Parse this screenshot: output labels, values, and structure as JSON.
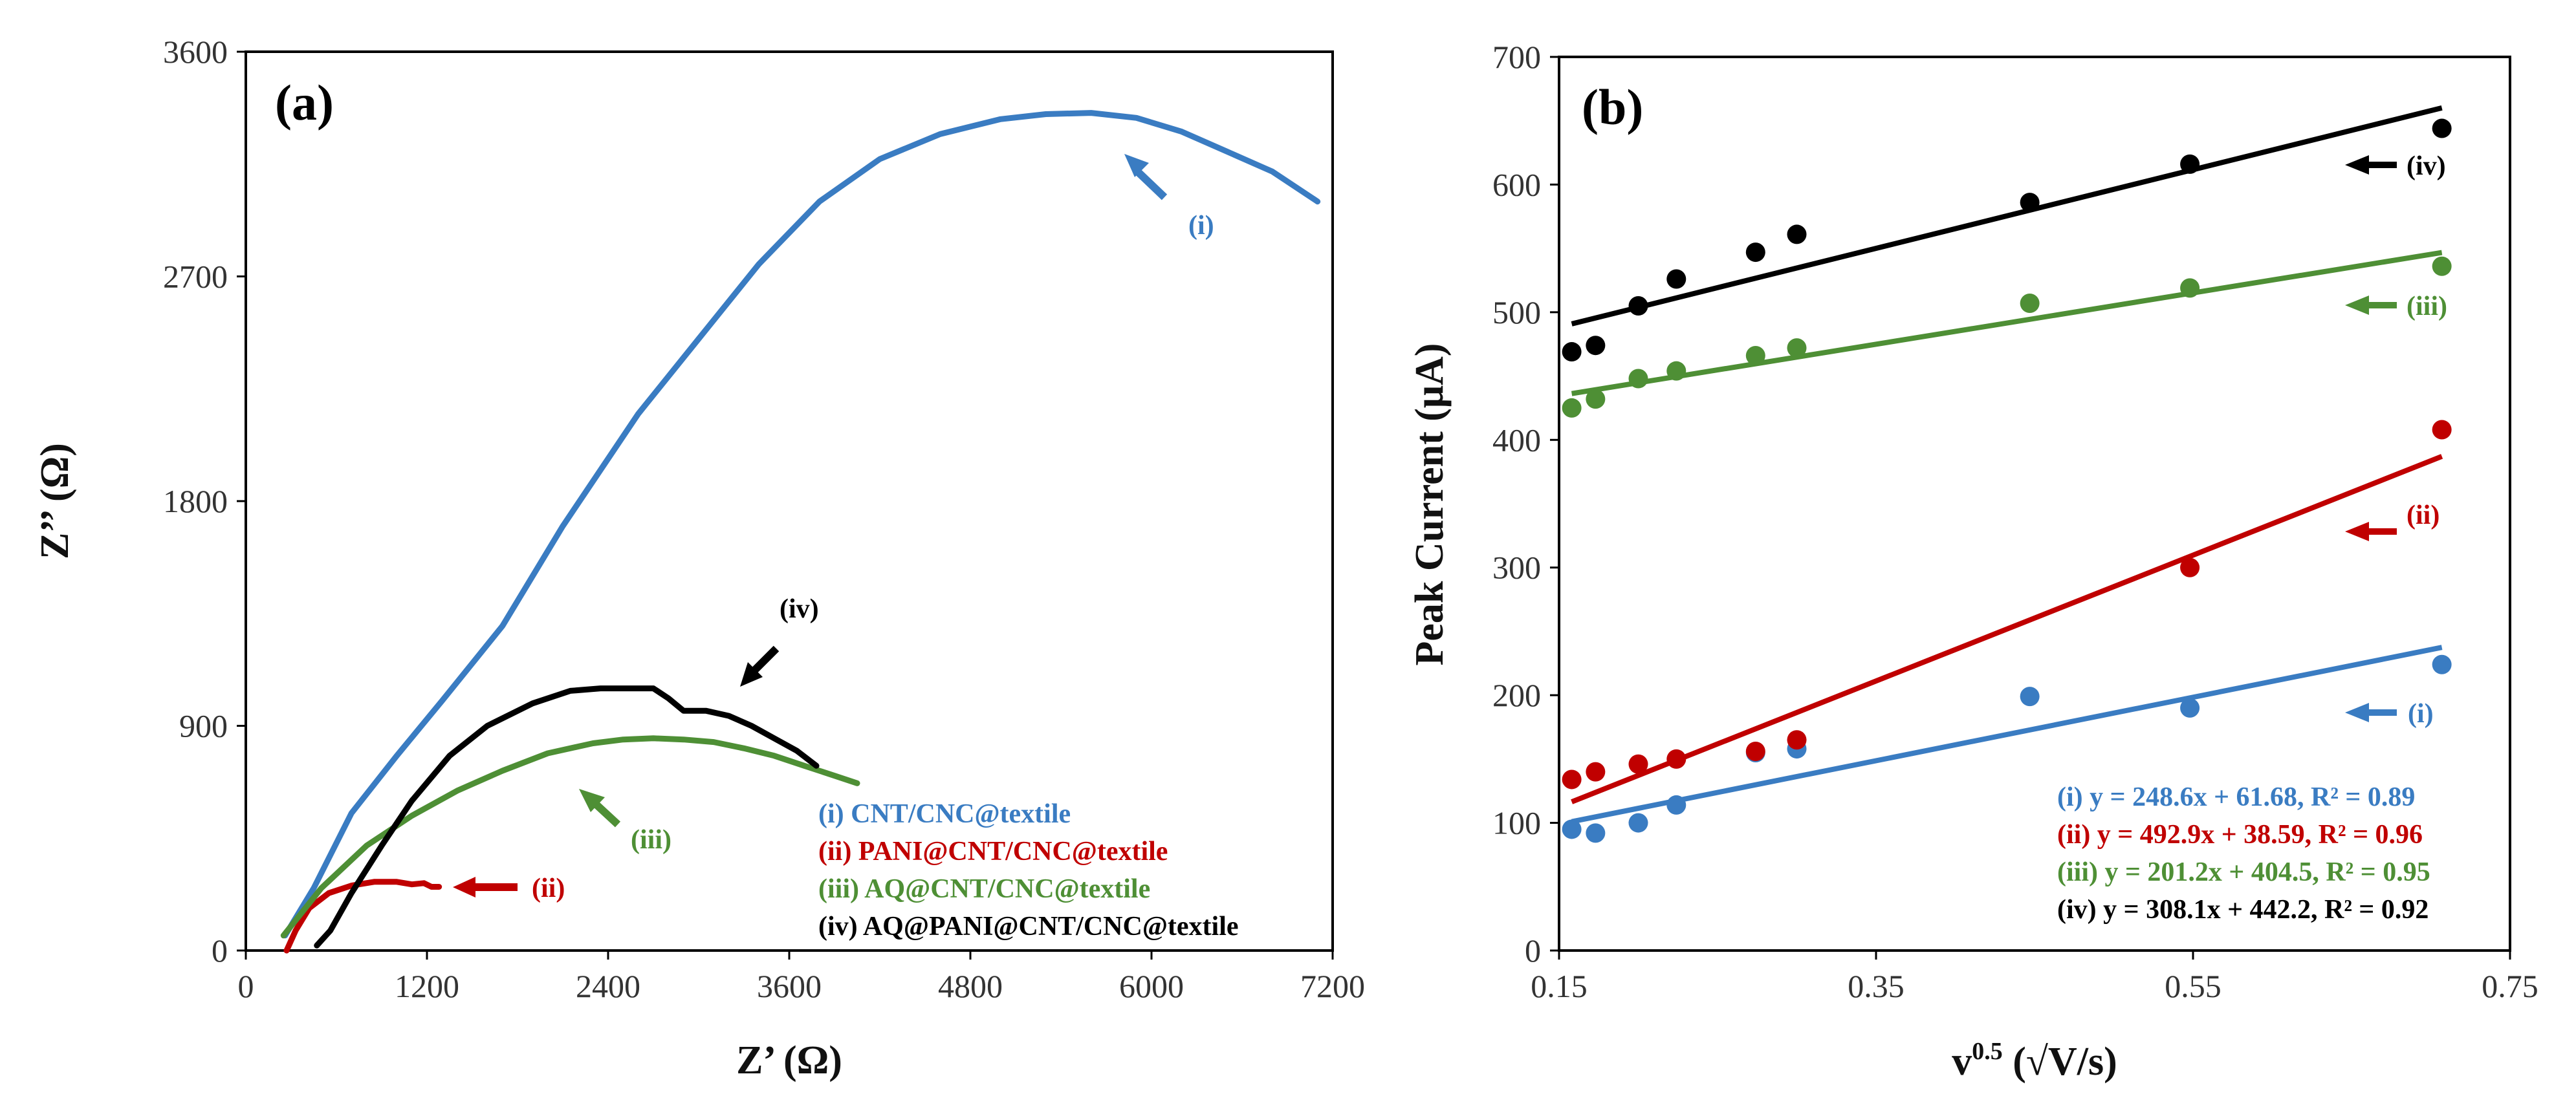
{
  "chart_data": [
    {
      "type": "line",
      "panel_label": "(a)",
      "xlabel": "Z’ (Ω)",
      "ylabel": "Z’’ (Ω)",
      "xlim": [
        0,
        7200
      ],
      "ylim": [
        0,
        3600
      ],
      "xticks": [
        0,
        1200,
        2400,
        3600,
        4800,
        6000,
        7200
      ],
      "yticks": [
        0,
        900,
        1800,
        2700,
        3600
      ],
      "grid": false,
      "legend_position": "bottom-right",
      "series": [
        {
          "name": "(i) CNT/CNC@textile",
          "color": "#3a7cc2",
          "x": [
            260,
            450,
            700,
            1000,
            1300,
            1700,
            2100,
            2600,
            3000,
            3400,
            3800,
            4200,
            4600,
            5000,
            5300,
            5600,
            5900,
            6200,
            6500,
            6800,
            7100
          ],
          "y": [
            60,
            250,
            550,
            780,
            1000,
            1300,
            1700,
            2150,
            2450,
            2750,
            3000,
            3170,
            3270,
            3330,
            3350,
            3355,
            3335,
            3280,
            3200,
            3120,
            3000
          ]
        },
        {
          "name": "(ii) PANI@CNT/CNC@textile",
          "color": "#c00000",
          "x": [
            270,
            330,
            420,
            550,
            700,
            850,
            1000,
            1100,
            1180,
            1230,
            1280
          ],
          "y": [
            0,
            80,
            170,
            230,
            260,
            275,
            275,
            265,
            270,
            255,
            255
          ]
        },
        {
          "name": "(iii) AQ@CNT/CNC@textile",
          "color": "#4e8f35",
          "x": [
            250,
            500,
            800,
            1100,
            1400,
            1700,
            2000,
            2300,
            2500,
            2700,
            2900,
            3100,
            3300,
            3500,
            3700,
            3900,
            4050
          ],
          "y": [
            60,
            250,
            420,
            540,
            640,
            720,
            790,
            830,
            845,
            850,
            845,
            835,
            810,
            780,
            740,
            700,
            670
          ]
        },
        {
          "name": "(iv) AQ@PANI@CNT/CNC@textile",
          "color": "#000000",
          "x": [
            470,
            560,
            700,
            900,
            1100,
            1350,
            1600,
            1900,
            2150,
            2350,
            2550,
            2700,
            2800,
            2900,
            3050,
            3200,
            3350,
            3500,
            3650,
            3780
          ],
          "y": [
            20,
            80,
            230,
            420,
            600,
            780,
            900,
            990,
            1040,
            1050,
            1050,
            1050,
            1010,
            960,
            960,
            940,
            900,
            850,
            800,
            740
          ]
        }
      ],
      "annotations": [
        {
          "text": "(i)",
          "color": "#3a7cc2",
          "arrow": "up-left"
        },
        {
          "text": "(ii)",
          "color": "#c00000",
          "arrow": "left"
        },
        {
          "text": "(iii)",
          "color": "#4e8f35",
          "arrow": "up-left"
        },
        {
          "text": "(iv)",
          "color": "#000000",
          "arrow": "down-left"
        }
      ]
    },
    {
      "type": "scatter",
      "panel_label": "(b)",
      "xlabel": "v0.5 (√V/s)",
      "xlabel_base": "v",
      "xlabel_superscript": "0.5",
      "xlabel_rest": " (√V/s)",
      "ylabel": "Peak Current (μA)",
      "xlim": [
        0.15,
        0.75
      ],
      "ylim": [
        0,
        700
      ],
      "xticks": [
        "0.15",
        "0.35",
        "0.55",
        "0.75"
      ],
      "yticks": [
        0,
        100,
        200,
        300,
        400,
        500,
        600,
        700
      ],
      "grid": false,
      "series": [
        {
          "label": "(i)",
          "color": "#3a7cc2",
          "x": [
            0.158,
            0.173,
            0.2,
            0.224,
            0.274,
            0.3,
            0.447,
            0.548,
            0.707
          ],
          "y": [
            95,
            92,
            100,
            114,
            155,
            158,
            199,
            190,
            224
          ],
          "fit": {
            "slope": 248.6,
            "intercept": 61.68,
            "r2": 0.89
          },
          "equation": "(i) y = 248.6x + 61.68, R² = 0.89"
        },
        {
          "label": "(ii)",
          "color": "#c00000",
          "x": [
            0.158,
            0.173,
            0.2,
            0.224,
            0.274,
            0.3,
            0.548,
            0.707
          ],
          "y": [
            134,
            140,
            146,
            150,
            156,
            165,
            300,
            408
          ],
          "fit": {
            "slope": 492.9,
            "intercept": 38.59,
            "r2": 0.96
          },
          "equation": "(ii) y = 492.9x + 38.59, R² = 0.96"
        },
        {
          "label": "(iii)",
          "color": "#4e8f35",
          "x": [
            0.158,
            0.173,
            0.2,
            0.224,
            0.274,
            0.3,
            0.447,
            0.548,
            0.707
          ],
          "y": [
            425,
            432,
            448,
            454,
            466,
            472,
            507,
            519,
            536
          ],
          "fit": {
            "slope": 201.2,
            "intercept": 404.5,
            "r2": 0.95
          },
          "equation": "(iii) y = 201.2x + 404.5, R² = 0.95"
        },
        {
          "label": "(iv)",
          "color": "#000000",
          "x": [
            0.158,
            0.173,
            0.2,
            0.224,
            0.274,
            0.3,
            0.447,
            0.548,
            0.707
          ],
          "y": [
            469,
            474,
            505,
            526,
            547,
            561,
            586,
            616,
            644
          ],
          "fit": {
            "slope": 308.1,
            "intercept": 442.2,
            "r2": 0.92
          },
          "equation": "(iv) y = 308.1x + 442.2, R² = 0.92"
        }
      ]
    }
  ]
}
